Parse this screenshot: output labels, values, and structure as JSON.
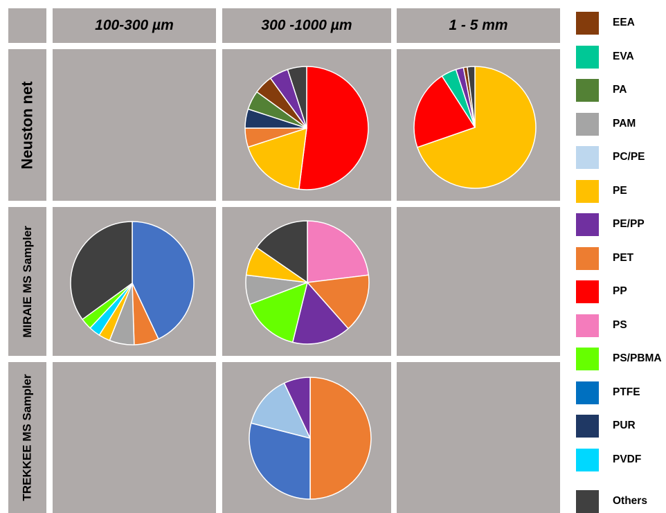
{
  "columns": [
    "100-300 µm",
    "300 -1000 µm",
    "1 - 5 mm"
  ],
  "rows": [
    "Neuston net",
    "MIRAIE MS Sampler",
    "TREKKEE MS Sampler"
  ],
  "legend": [
    {
      "label": "EEA",
      "color": "#843c0c"
    },
    {
      "label": "EVA",
      "color": "#00c896"
    },
    {
      "label": "PA",
      "color": "#538135"
    },
    {
      "label": "PAM",
      "color": "#a5a5a5"
    },
    {
      "label": "PC/PE",
      "color": "#bdd7ee"
    },
    {
      "label": "PE",
      "color": "#ffc000"
    },
    {
      "label": "PE/PP",
      "color": "#7030a0"
    },
    {
      "label": "PET",
      "color": "#ed7d31"
    },
    {
      "label": "PP",
      "color": "#ff0000"
    },
    {
      "label": "PS",
      "color": "#f47cbc"
    },
    {
      "label": "PS/PBMA",
      "color": "#66ff00"
    },
    {
      "label": "PTFE",
      "color": "#0070c0"
    },
    {
      "label": "PUR",
      "color": "#1f3864"
    },
    {
      "label": "PVDF",
      "color": "#00d8ff"
    },
    {
      "label": "Others",
      "color": "#404040"
    }
  ],
  "chart_data": [
    {
      "type": "pie",
      "row": "Neuston net",
      "column": "300 -1000 µm",
      "slices": [
        {
          "label": "PP",
          "value": 52,
          "color": "#ff0000"
        },
        {
          "label": "PE",
          "value": 18,
          "color": "#ffc000"
        },
        {
          "label": "PET",
          "value": 5,
          "color": "#ed7d31"
        },
        {
          "label": "PUR",
          "value": 5,
          "color": "#1f3864"
        },
        {
          "label": "PA",
          "value": 5,
          "color": "#538135"
        },
        {
          "label": "EEA",
          "value": 5,
          "color": "#843c0c"
        },
        {
          "label": "PE/PP",
          "value": 5,
          "color": "#7030a0"
        },
        {
          "label": "Others",
          "value": 5,
          "color": "#404040"
        }
      ]
    },
    {
      "type": "pie",
      "row": "Neuston net",
      "column": "1 - 5 mm",
      "slices": [
        {
          "label": "PE",
          "value": 69,
          "color": "#ffc000"
        },
        {
          "label": "PP",
          "value": 21,
          "color": "#ff0000"
        },
        {
          "label": "EVA",
          "value": 4,
          "color": "#00c896"
        },
        {
          "label": "PE/PP",
          "value": 2,
          "color": "#7030a0"
        },
        {
          "label": "EEA",
          "value": 1,
          "color": "#843c0c"
        },
        {
          "label": "Others",
          "value": 2,
          "color": "#404040"
        }
      ]
    },
    {
      "type": "pie",
      "row": "MIRAIE MS Sampler",
      "column": "100-300 µm",
      "slices": [
        {
          "label": "PTFE",
          "value": 43,
          "color": "#4472c4"
        },
        {
          "label": "PET",
          "value": 6.5,
          "color": "#ed7d31"
        },
        {
          "label": "PAM",
          "value": 6.5,
          "color": "#a5a5a5"
        },
        {
          "label": "PE",
          "value": 3,
          "color": "#ffc000"
        },
        {
          "label": "PVDF",
          "value": 3,
          "color": "#00d8ff"
        },
        {
          "label": "PS/PBMA",
          "value": 3,
          "color": "#66ff00"
        },
        {
          "label": "Others",
          "value": 35,
          "color": "#404040"
        }
      ]
    },
    {
      "type": "pie",
      "row": "MIRAIE MS Sampler",
      "column": "300 -1000 µm",
      "slices": [
        {
          "label": "PS",
          "value": 21,
          "color": "#f47cbc"
        },
        {
          "label": "PET",
          "value": 14,
          "color": "#ed7d31"
        },
        {
          "label": "PE/PP",
          "value": 14,
          "color": "#7030a0"
        },
        {
          "label": "PS/PBMA",
          "value": 14,
          "color": "#66ff00"
        },
        {
          "label": "PAM",
          "value": 7,
          "color": "#a5a5a5"
        },
        {
          "label": "PE",
          "value": 7,
          "color": "#ffc000"
        },
        {
          "label": "Others",
          "value": 14,
          "color": "#404040"
        }
      ]
    },
    {
      "type": "pie",
      "row": "TREKKEE MS Sampler",
      "column": "300 -1000 µm",
      "slices": [
        {
          "label": "PET",
          "value": 50,
          "color": "#ed7d31"
        },
        {
          "label": "PTFE",
          "value": 29,
          "color": "#4472c4"
        },
        {
          "label": "PC/PE",
          "value": 14,
          "color": "#9dc3e6"
        },
        {
          "label": "PE/PP",
          "value": 7,
          "color": "#7030a0"
        }
      ]
    }
  ]
}
